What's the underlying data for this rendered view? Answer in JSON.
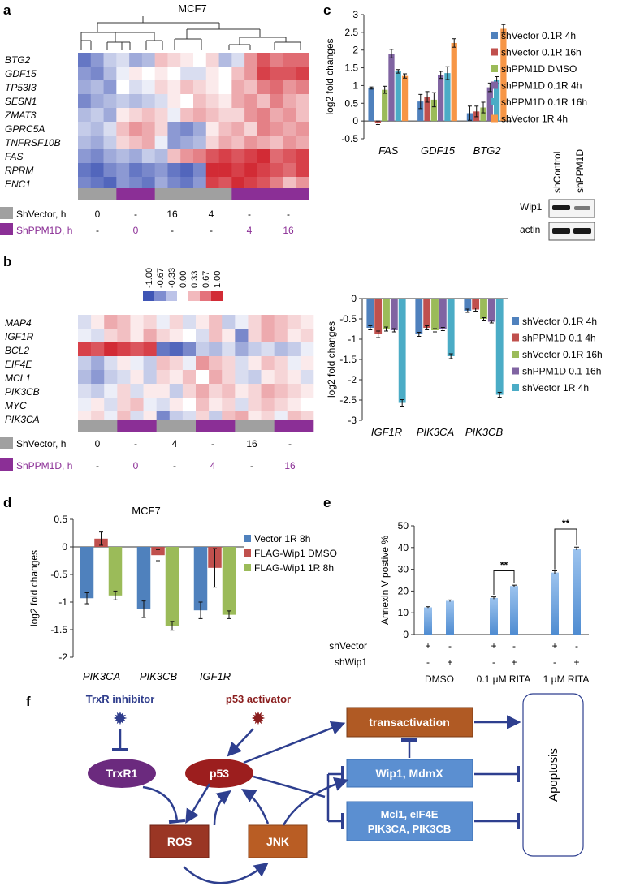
{
  "panel_labels": [
    "a",
    "b",
    "c",
    "d",
    "e",
    "f"
  ],
  "panel_a": {
    "title": "MCF7",
    "genes": [
      "BTG2",
      "GDF15",
      "TP53I3",
      "SESN1",
      "ZMAT3",
      "GPRC5A",
      "TNFRSF10B",
      "FAS",
      "RPRM",
      "ENC1"
    ],
    "row_labels": [
      "ShVector, h",
      "ShPPM1D, h"
    ],
    "vector_times": [
      "0",
      "-",
      "16",
      "4",
      "-",
      "-"
    ],
    "ppm1d_times": [
      "-",
      "0",
      "-",
      "-",
      "4",
      "16"
    ],
    "group_colors": [
      "#a0a0a0",
      "#8b2f96",
      "#a0a0a0",
      "#a0a0a0",
      "#8b2f96",
      "#8b2f96"
    ],
    "heat": [
      [
        -0.8,
        -0.6,
        -0.3,
        -0.2,
        -0.5,
        -0.4,
        0.3,
        0.2,
        0.1,
        0.0,
        0.2,
        -0.4,
        -0.2,
        0.5,
        0.8,
        0.6,
        0.7,
        0.7
      ],
      [
        -0.6,
        -0.7,
        -0.4,
        -0.1,
        0.1,
        0.0,
        0.1,
        0.0,
        -0.2,
        -0.2,
        0.1,
        0.0,
        0.3,
        0.5,
        0.9,
        0.8,
        0.8,
        0.9
      ],
      [
        -0.5,
        -0.4,
        -0.6,
        0.0,
        -0.2,
        -0.1,
        0.2,
        0.1,
        0.3,
        0.2,
        0.1,
        0.0,
        0.4,
        0.3,
        0.6,
        0.7,
        0.5,
        0.6
      ],
      [
        -0.7,
        -0.5,
        -0.4,
        -0.3,
        -0.4,
        -0.3,
        -0.2,
        0.1,
        0.0,
        0.3,
        0.2,
        0.1,
        0.4,
        0.5,
        0.3,
        0.6,
        0.4,
        0.3
      ],
      [
        -0.4,
        -0.3,
        -0.5,
        0.1,
        0.2,
        0.3,
        0.2,
        -0.1,
        0.3,
        0.4,
        0.3,
        0.2,
        0.2,
        0.5,
        0.6,
        0.4,
        0.5,
        0.3
      ],
      [
        -0.3,
        -0.4,
        -0.2,
        0.3,
        0.5,
        0.4,
        0.2,
        -0.6,
        -0.7,
        -0.5,
        0.1,
        0.3,
        0.4,
        0.2,
        0.6,
        0.5,
        0.4,
        0.5
      ],
      [
        -0.4,
        -0.5,
        -0.3,
        0.2,
        0.3,
        0.4,
        -0.1,
        -0.6,
        -0.5,
        -0.4,
        0.2,
        0.4,
        0.3,
        0.5,
        0.4,
        0.3,
        0.5,
        0.4
      ],
      [
        -0.6,
        -0.7,
        -0.5,
        -0.4,
        -0.5,
        -0.3,
        -0.4,
        0.3,
        0.5,
        0.6,
        0.8,
        0.9,
        0.8,
        0.9,
        1.0,
        0.7,
        0.8,
        0.9
      ],
      [
        -0.8,
        -0.9,
        -0.7,
        -0.6,
        -0.8,
        -0.7,
        -0.6,
        -0.8,
        -0.9,
        -0.7,
        1.0,
        1.0,
        0.9,
        1.0,
        0.9,
        0.8,
        0.7,
        0.9
      ],
      [
        -0.7,
        -0.8,
        -0.9,
        -0.6,
        -0.7,
        -0.8,
        -0.5,
        -0.7,
        -0.8,
        -0.6,
        0.9,
        0.8,
        1.0,
        0.9,
        0.8,
        0.6,
        0.3,
        0.5
      ]
    ]
  },
  "panel_b": {
    "scale_labels": [
      "-1.00",
      "-0.67",
      "-0.33",
      "0.00",
      "0.33",
      "0.67",
      "1.00"
    ],
    "genes": [
      "MAP4",
      "IGF1R",
      "BCL2",
      "EIF4E",
      "MCL1",
      "PIK3CB",
      "MYC",
      "PIK3CA"
    ],
    "row_labels": [
      "ShVector, h",
      "ShPPM1D, h"
    ],
    "vector_times": [
      "0",
      "-",
      "4",
      "-",
      "16",
      "-"
    ],
    "ppm1d_times": [
      "-",
      "0",
      "-",
      "4",
      "-",
      "16"
    ],
    "group_colors": [
      "#a0a0a0",
      "#8b2f96",
      "#a0a0a0",
      "#8b2f96",
      "#a0a0a0",
      "#8b2f96"
    ],
    "heat": [
      [
        -0.2,
        0.1,
        0.4,
        0.3,
        0.1,
        0.2,
        -0.1,
        0.2,
        -0.2,
        0.1,
        0.3,
        -0.3,
        -0.1,
        0.2,
        0.4,
        0.3,
        0.2,
        0.1
      ],
      [
        -0.1,
        -0.2,
        0.2,
        0.3,
        0.1,
        0.4,
        0.2,
        0.1,
        0.0,
        -0.2,
        0.3,
        0.1,
        -0.7,
        0.2,
        0.4,
        0.3,
        0.1,
        0.2
      ],
      [
        0.9,
        0.8,
        1.0,
        0.9,
        0.8,
        0.9,
        -0.8,
        -0.9,
        -0.7,
        -0.3,
        -0.4,
        -0.2,
        -0.5,
        -0.3,
        -0.2,
        -0.4,
        -0.3,
        -0.1
      ],
      [
        -0.3,
        -0.5,
        -0.2,
        0.1,
        -0.1,
        -0.3,
        0.3,
        0.2,
        -0.1,
        0.5,
        0.3,
        0.2,
        -0.2,
        0.1,
        0.3,
        0.2,
        -0.1,
        0.1
      ],
      [
        -0.4,
        -0.6,
        -0.3,
        -0.2,
        0.1,
        -0.3,
        0.2,
        0.1,
        0.3,
        0.0,
        0.4,
        0.2,
        -0.2,
        -0.3,
        0.1,
        0.2,
        0.1,
        -0.2
      ],
      [
        -0.2,
        -0.3,
        -0.1,
        0.2,
        -0.2,
        0.1,
        0.1,
        -0.3,
        0.2,
        0.4,
        0.2,
        0.3,
        0.1,
        0.2,
        0.4,
        0.3,
        0.2,
        0.1
      ],
      [
        -0.1,
        0.1,
        -0.2,
        0.2,
        0.3,
        -0.1,
        -0.2,
        0.1,
        0.0,
        0.3,
        0.1,
        0.2,
        -0.2,
        0.2,
        0.3,
        0.2,
        0.1,
        0.0
      ],
      [
        0.1,
        0.2,
        -0.1,
        0.3,
        -0.2,
        0.1,
        -0.7,
        -0.3,
        -0.2,
        0.2,
        -0.3,
        0.3,
        0.4,
        0.1,
        0.2,
        -0.1,
        0.3,
        0.2
      ]
    ]
  },
  "chart_data": [
    {
      "panel": "c",
      "type": "bar",
      "categories": [
        "FAS",
        "GDF15",
        "BTG2"
      ],
      "ylabel": "log2 fold changes",
      "ylim": [
        -0.5,
        3
      ],
      "yticks": [
        "-0.5",
        "0",
        "0.5",
        "1",
        "1.5",
        "2",
        "2.5",
        "3"
      ],
      "series": [
        {
          "name": "shVector 0.1R 4h",
          "color": "#4f81bd",
          "values": [
            0.93,
            0.55,
            0.22
          ],
          "err": [
            0.03,
            0.2,
            0.2
          ]
        },
        {
          "name": "shVector 0.1R 16h",
          "color": "#c0504d",
          "values": [
            -0.05,
            0.68,
            0.27
          ],
          "err": [
            0.05,
            0.15,
            0.15
          ]
        },
        {
          "name": "shPPM1D DMSO",
          "color": "#9bbb59",
          "values": [
            0.88,
            0.6,
            0.38
          ],
          "err": [
            0.1,
            0.2,
            0.15
          ]
        },
        {
          "name": "shPPM1D 0.1R 4h",
          "color": "#8064a2",
          "values": [
            1.9,
            1.3,
            0.95
          ],
          "err": [
            0.12,
            0.1,
            0.12
          ]
        },
        {
          "name": "shPPM1D 0.1R 16h",
          "color": "#4bacc6",
          "values": [
            1.4,
            1.35,
            1.15
          ],
          "err": [
            0.05,
            0.18,
            0.1
          ]
        },
        {
          "name": "shVector 1R 4h",
          "color": "#f79646",
          "values": [
            1.27,
            2.2,
            2.6
          ],
          "err": [
            0.06,
            0.12,
            0.12
          ]
        }
      ]
    },
    {
      "panel": "b-bar",
      "type": "bar",
      "categories": [
        "IGF1R",
        "PIK3CA",
        "PIK3CB"
      ],
      "ylabel": "log2 fold changes",
      "ylim": [
        -3,
        0
      ],
      "yticks": [
        "-3",
        "-2.5",
        "-2",
        "-1.5",
        "-1",
        "-0.5",
        "0"
      ],
      "series": [
        {
          "name": "shVector 0.1R 4h",
          "color": "#4f81bd",
          "values": [
            -0.72,
            -0.88,
            -0.3
          ],
          "err": [
            0.05,
            0.05,
            0.04
          ]
        },
        {
          "name": "shPPM1D 0.1 4h",
          "color": "#c0504d",
          "values": [
            -0.88,
            -0.72,
            -0.27
          ],
          "err": [
            0.08,
            0.05,
            0.04
          ]
        },
        {
          "name": "shVector 0.1R 16h",
          "color": "#9bbb59",
          "values": [
            -0.75,
            -0.78,
            -0.5
          ],
          "err": [
            0.05,
            0.04,
            0.03
          ]
        },
        {
          "name": "shPPM1D 0.1 16h",
          "color": "#8064a2",
          "values": [
            -0.78,
            -0.75,
            -0.57
          ],
          "err": [
            0.04,
            0.04,
            0.03
          ]
        },
        {
          "name": "shVector 1R 4h",
          "color": "#4bacc6",
          "values": [
            -2.57,
            -1.42,
            -2.37
          ],
          "err": [
            0.08,
            0.06,
            0.06
          ]
        }
      ]
    },
    {
      "panel": "d",
      "type": "bar",
      "title": "MCF7",
      "categories": [
        "PIK3CA",
        "PIK3CB",
        "IGF1R"
      ],
      "ylabel": "log2 fold changes",
      "ylim": [
        -2,
        0.5
      ],
      "yticks": [
        "-2",
        "-1.5",
        "-1",
        "-0.5",
        "0",
        "0.5"
      ],
      "series": [
        {
          "name": "Vector 1R 8h",
          "color": "#4f81bd",
          "values": [
            -0.93,
            -1.13,
            -1.15
          ],
          "err": [
            0.1,
            0.15,
            0.15
          ]
        },
        {
          "name": "FLAG-Wip1 DMSO",
          "color": "#c0504d",
          "values": [
            0.15,
            -0.15,
            -0.38
          ],
          "err": [
            0.12,
            0.1,
            0.35
          ]
        },
        {
          "name": "FLAG-Wip1 1R 8h",
          "color": "#9bbb59",
          "values": [
            -0.88,
            -1.43,
            -1.23
          ],
          "err": [
            0.08,
            0.08,
            0.07
          ]
        }
      ]
    },
    {
      "panel": "e",
      "type": "bar",
      "ylabel": "Annexin V postive %",
      "ylim": [
        0,
        50
      ],
      "yticks": [
        "0",
        "10",
        "20",
        "30",
        "40",
        "50"
      ],
      "row_labels": [
        "shVector",
        "shWip1"
      ],
      "shvector_marks": [
        "+",
        "-",
        "+",
        "-",
        "+",
        "-"
      ],
      "shwip1_marks": [
        "-",
        "+",
        "-",
        "+",
        "-",
        "+"
      ],
      "groups": [
        "DMSO",
        "0.1 μM RITA",
        "1 μM RITA"
      ],
      "values": [
        12.5,
        15.5,
        16.8,
        22.3,
        28.5,
        39.5
      ],
      "err": [
        0.3,
        0.4,
        0.5,
        0.4,
        0.8,
        0.7
      ],
      "significance": [
        "**",
        "**"
      ],
      "color": "#7aaee0"
    }
  ],
  "panel_c_blot": {
    "lanes": [
      "shControl",
      "shPPM1D"
    ],
    "rows": [
      "Wip1",
      "actin"
    ]
  },
  "panel_f": {
    "trxr_inhibitor": "TrxR inhibitor",
    "p53_activator": "p53 activator",
    "trxr1": "TrxR1",
    "p53": "p53",
    "ros": "ROS",
    "jnk": "JNK",
    "transactivation": "transactivation",
    "wip1_mdmx": "Wip1, MdmX",
    "mcl1_line1": "Mcl1, eIF4E",
    "mcl1_line2": "PIK3CA, PIK3CB",
    "apoptosis": "Apoptosis"
  }
}
